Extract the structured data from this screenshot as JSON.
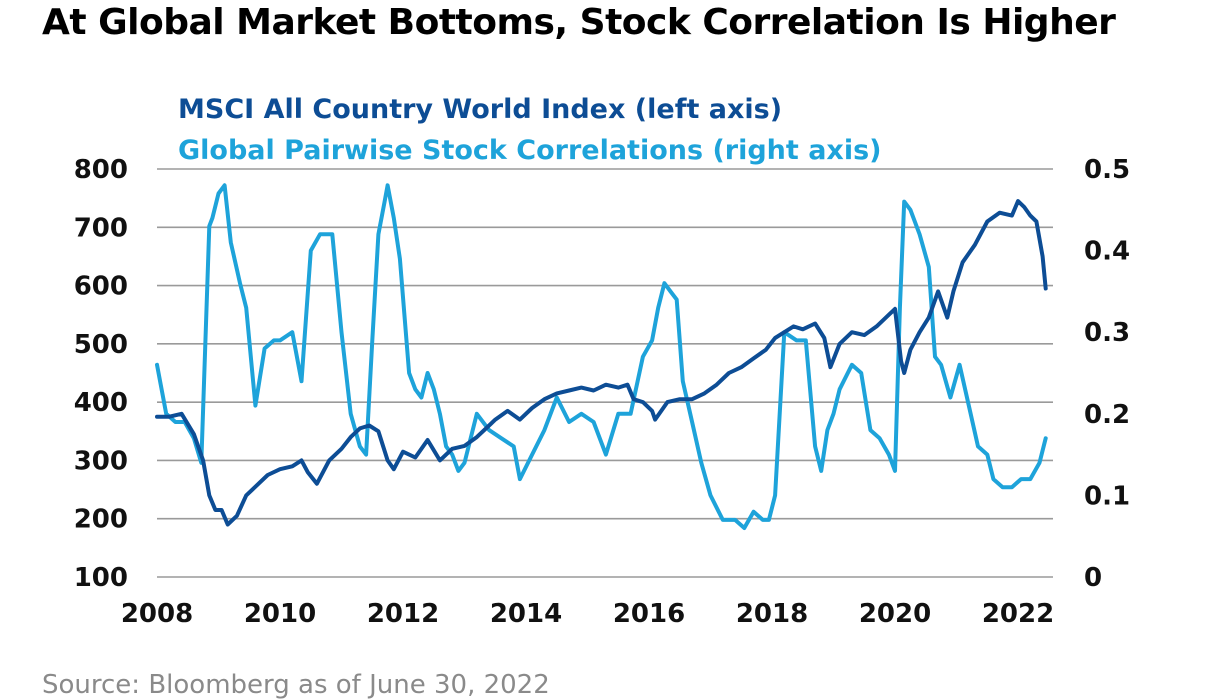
{
  "title": "At Global Market Bottoms, Stock Correlation Is Higher",
  "source": "Source: Bloomberg as of June 30, 2022",
  "colors": {
    "msci": "#0d4d95",
    "correlation": "#1ea3da",
    "grid": "#9a9a9a"
  },
  "chart_data": {
    "type": "line",
    "x_ticks": [
      "2008",
      "2010",
      "2012",
      "2014",
      "2016",
      "2018",
      "2020",
      "2022"
    ],
    "xlim": [
      2008,
      2022.6
    ],
    "left_axis": {
      "ticks": [
        "100",
        "200",
        "300",
        "400",
        "500",
        "600",
        "700",
        "800"
      ],
      "ylim": [
        100,
        800
      ]
    },
    "right_axis": {
      "ticks": [
        "0",
        "0.1",
        "0.2",
        "0.3",
        "0.4",
        "0.5"
      ],
      "ylim": [
        0,
        0.5
      ]
    },
    "grid": true,
    "legend_position": "top-left",
    "series": [
      {
        "name": "MSCI All Country World Index (left axis)",
        "axis": "left",
        "x": [
          2008.0,
          2008.2,
          2008.4,
          2008.6,
          2008.75,
          2008.85,
          2008.95,
          2009.05,
          2009.15,
          2009.3,
          2009.45,
          2009.6,
          2009.8,
          2010.0,
          2010.2,
          2010.35,
          2010.45,
          2010.6,
          2010.8,
          2011.0,
          2011.15,
          2011.3,
          2011.45,
          2011.6,
          2011.75,
          2011.85,
          2012.0,
          2012.2,
          2012.4,
          2012.6,
          2012.8,
          2013.0,
          2013.2,
          2013.4,
          2013.5,
          2013.7,
          2013.9,
          2014.1,
          2014.3,
          2014.5,
          2014.7,
          2014.9,
          2015.1,
          2015.3,
          2015.5,
          2015.65,
          2015.75,
          2015.9,
          2016.05,
          2016.1,
          2016.3,
          2016.5,
          2016.7,
          2016.9,
          2017.1,
          2017.3,
          2017.5,
          2017.7,
          2017.9,
          2018.05,
          2018.2,
          2018.35,
          2018.5,
          2018.7,
          2018.85,
          2018.95,
          2019.1,
          2019.3,
          2019.5,
          2019.7,
          2019.9,
          2020.0,
          2020.1,
          2020.15,
          2020.25,
          2020.4,
          2020.55,
          2020.7,
          2020.85,
          2020.95,
          2021.1,
          2021.3,
          2021.5,
          2021.7,
          2021.9,
          2022.0,
          2022.1,
          2022.2,
          2022.3,
          2022.4,
          2022.45
        ],
        "values": [
          375,
          375,
          380,
          345,
          300,
          240,
          215,
          215,
          190,
          205,
          240,
          255,
          275,
          285,
          290,
          300,
          280,
          260,
          300,
          320,
          340,
          355,
          360,
          350,
          300,
          285,
          315,
          305,
          335,
          300,
          320,
          325,
          340,
          360,
          370,
          385,
          370,
          390,
          405,
          415,
          420,
          425,
          420,
          430,
          425,
          430,
          405,
          400,
          385,
          370,
          400,
          405,
          405,
          415,
          430,
          450,
          460,
          475,
          490,
          510,
          520,
          530,
          525,
          535,
          510,
          460,
          500,
          520,
          515,
          530,
          550,
          560,
          470,
          450,
          490,
          520,
          545,
          590,
          545,
          590,
          640,
          670,
          710,
          725,
          720,
          745,
          735,
          720,
          710,
          650,
          595
        ]
      },
      {
        "name": "Global Pairwise Stock Correlations (right axis)",
        "axis": "right",
        "x": [
          2008.0,
          2008.15,
          2008.3,
          2008.45,
          2008.6,
          2008.72,
          2008.85,
          2008.9,
          2009.0,
          2009.1,
          2009.2,
          2009.35,
          2009.45,
          2009.6,
          2009.75,
          2009.9,
          2010.0,
          2010.2,
          2010.35,
          2010.5,
          2010.65,
          2010.85,
          2011.0,
          2011.15,
          2011.3,
          2011.4,
          2011.5,
          2011.6,
          2011.7,
          2011.75,
          2011.85,
          2011.95,
          2012.1,
          2012.2,
          2012.3,
          2012.4,
          2012.5,
          2012.6,
          2012.7,
          2012.8,
          2012.9,
          2013.0,
          2013.2,
          2013.4,
          2013.6,
          2013.8,
          2013.9,
          2014.1,
          2014.3,
          2014.5,
          2014.7,
          2014.9,
          2015.1,
          2015.3,
          2015.5,
          2015.7,
          2015.9,
          2016.05,
          2016.15,
          2016.25,
          2016.35,
          2016.45,
          2016.55,
          2016.7,
          2016.85,
          2017.0,
          2017.2,
          2017.4,
          2017.55,
          2017.7,
          2017.85,
          2017.95,
          2018.05,
          2018.2,
          2018.4,
          2018.55,
          2018.7,
          2018.8,
          2018.9,
          2019.0,
          2019.1,
          2019.3,
          2019.45,
          2019.6,
          2019.75,
          2019.9,
          2020.0,
          2020.08,
          2020.15,
          2020.25,
          2020.4,
          2020.55,
          2020.65,
          2020.75,
          2020.9,
          2021.05,
          2021.2,
          2021.35,
          2021.5,
          2021.6,
          2021.75,
          2021.9,
          2022.05,
          2022.2,
          2022.35,
          2022.45
        ],
        "values": [
          0.26,
          0.2,
          0.19,
          0.19,
          0.17,
          0.14,
          0.43,
          0.44,
          0.47,
          0.48,
          0.41,
          0.36,
          0.33,
          0.21,
          0.28,
          0.29,
          0.29,
          0.3,
          0.24,
          0.4,
          0.42,
          0.42,
          0.3,
          0.2,
          0.16,
          0.15,
          0.29,
          0.42,
          0.46,
          0.48,
          0.44,
          0.39,
          0.25,
          0.23,
          0.22,
          0.25,
          0.23,
          0.2,
          0.16,
          0.15,
          0.13,
          0.14,
          0.2,
          0.18,
          0.17,
          0.16,
          0.12,
          0.15,
          0.18,
          0.22,
          0.19,
          0.2,
          0.19,
          0.15,
          0.2,
          0.2,
          0.27,
          0.29,
          0.33,
          0.36,
          0.35,
          0.34,
          0.24,
          0.19,
          0.14,
          0.1,
          0.07,
          0.07,
          0.06,
          0.08,
          0.07,
          0.07,
          0.1,
          0.3,
          0.29,
          0.29,
          0.16,
          0.13,
          0.18,
          0.2,
          0.23,
          0.26,
          0.25,
          0.18,
          0.17,
          0.15,
          0.13,
          0.33,
          0.46,
          0.45,
          0.42,
          0.38,
          0.27,
          0.26,
          0.22,
          0.26,
          0.21,
          0.16,
          0.15,
          0.12,
          0.11,
          0.11,
          0.12,
          0.12,
          0.14,
          0.17
        ]
      }
    ]
  }
}
